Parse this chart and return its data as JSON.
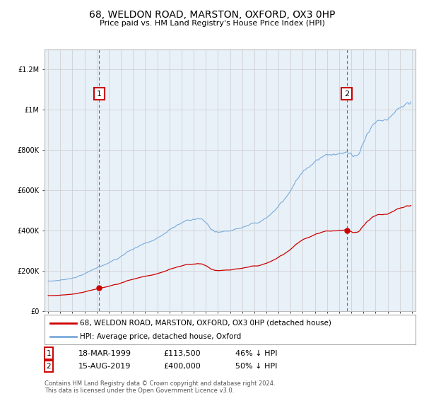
{
  "title": "68, WELDON ROAD, MARSTON, OXFORD, OX3 0HP",
  "subtitle": "Price paid vs. HM Land Registry's House Price Index (HPI)",
  "sale1_date": "18-MAR-1999",
  "sale1_price": 113500,
  "sale1_year": 1999.21,
  "sale1_label": "46% ↓ HPI",
  "sale2_date": "15-AUG-2019",
  "sale2_price": 400000,
  "sale2_year": 2019.62,
  "sale2_label": "50% ↓ HPI",
  "legend_line1": "68, WELDON ROAD, MARSTON, OXFORD, OX3 0HP (detached house)",
  "legend_line2": "HPI: Average price, detached house, Oxford",
  "footer": "Contains HM Land Registry data © Crown copyright and database right 2024.\nThis data is licensed under the Open Government Licence v3.0.",
  "line_color_sale": "#cc0000",
  "line_color_hpi": "#7aabdb",
  "plot_bg_color": "#e8f0f8",
  "ylim": [
    0,
    1300000
  ],
  "yticks": [
    0,
    200000,
    400000,
    600000,
    800000,
    1000000,
    1200000
  ],
  "bg_color": "#ffffff",
  "grid_color": "#cccccc",
  "num_box_color": "#cc0000"
}
